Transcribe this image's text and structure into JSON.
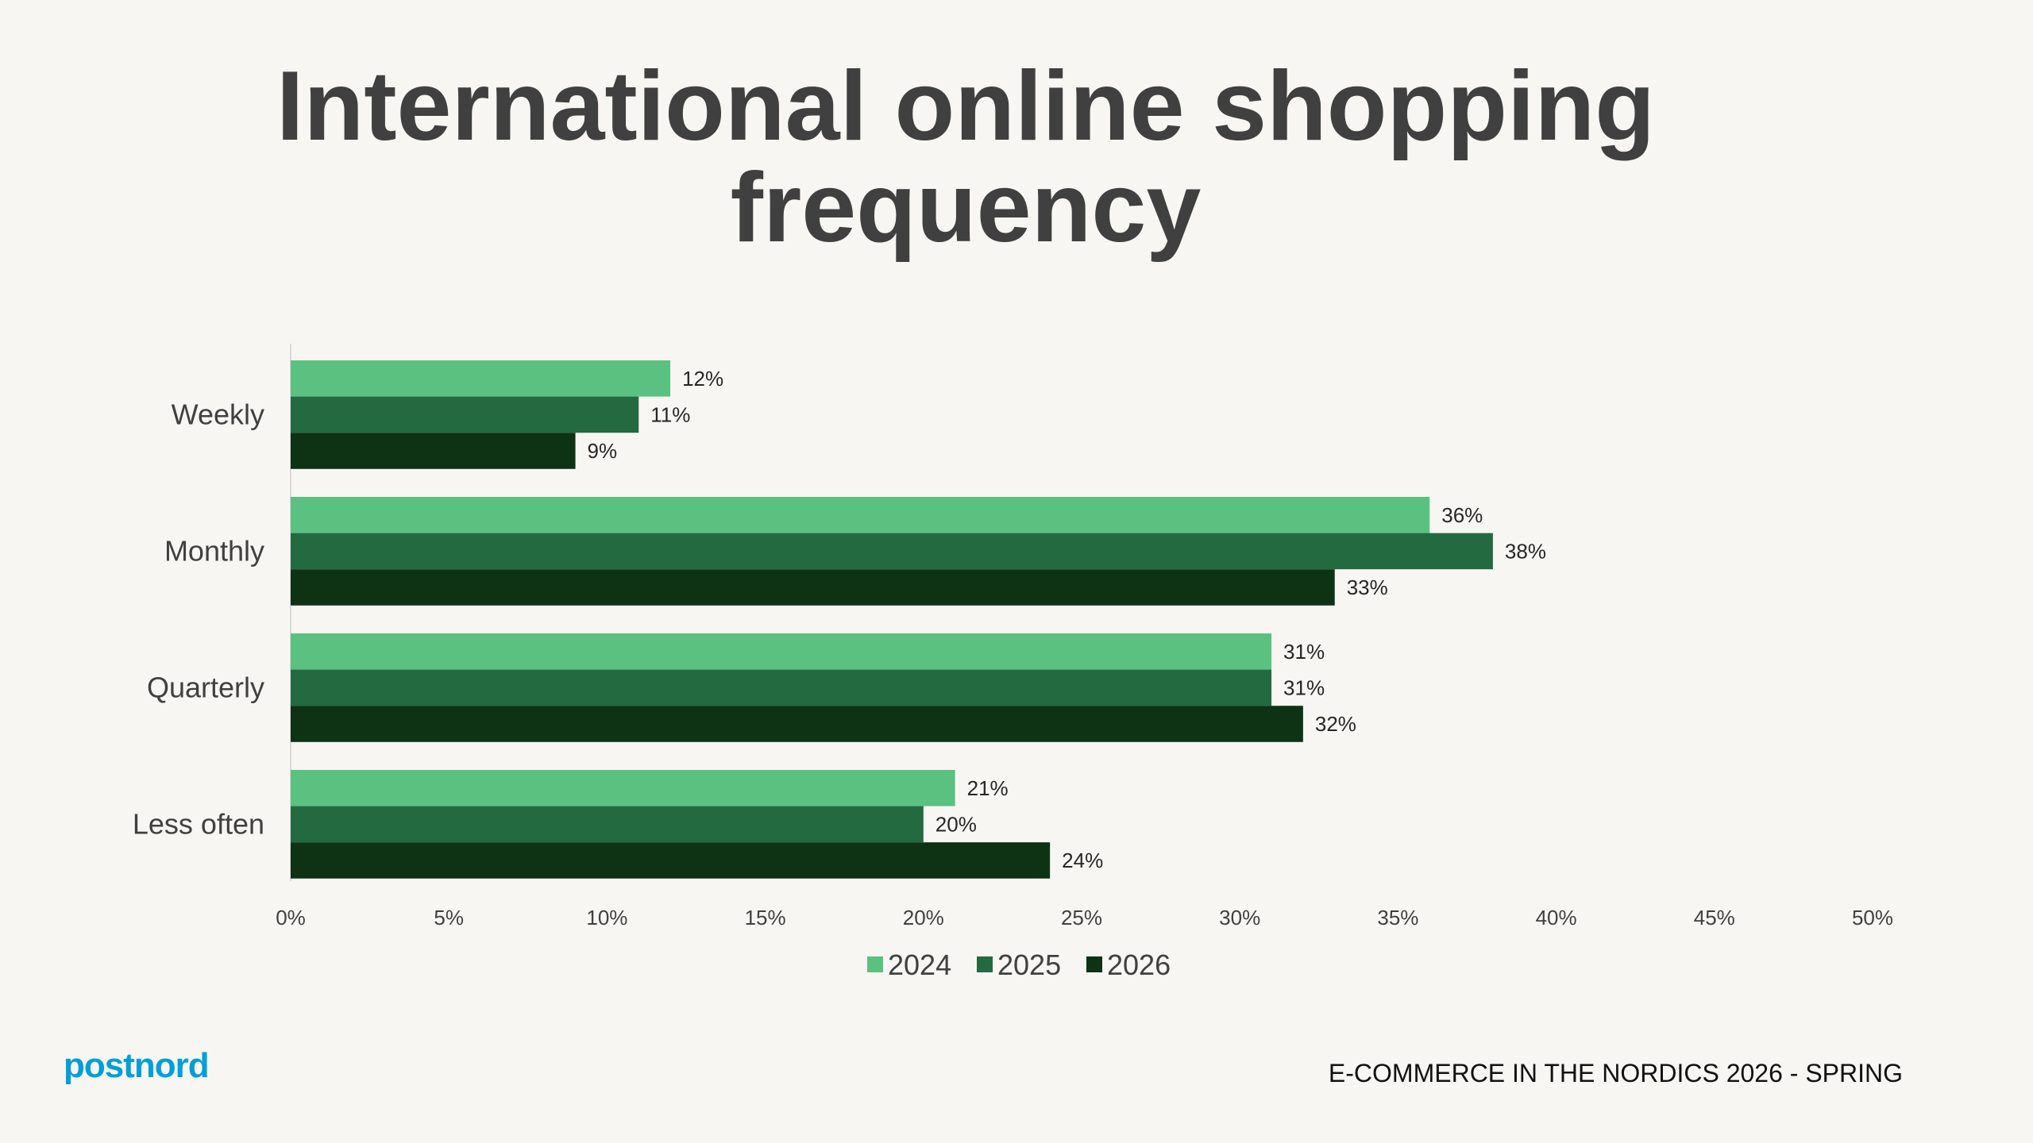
{
  "chart_data": {
    "type": "bar",
    "orientation": "horizontal",
    "title": "International online shopping frequency",
    "categories": [
      "Weekly",
      "Monthly",
      "Quarterly",
      "Less often"
    ],
    "series": [
      {
        "name": "2024",
        "color": "#5bc181",
        "values": [
          12,
          36,
          31,
          21
        ],
        "labels": [
          "12%",
          "36%",
          "31%",
          "21%"
        ]
      },
      {
        "name": "2025",
        "color": "#246a40",
        "values": [
          11,
          38,
          31,
          20
        ],
        "labels": [
          "11%",
          "38%",
          "31%",
          "20%"
        ]
      },
      {
        "name": "2026",
        "color": "#0d3314",
        "values": [
          9,
          33,
          32,
          24
        ],
        "labels": [
          "9%",
          "33%",
          "32%",
          "24%"
        ]
      }
    ],
    "xlim": [
      0,
      50
    ],
    "xticks": [
      "0%",
      "5%",
      "10%",
      "15%",
      "20%",
      "25%",
      "30%",
      "35%",
      "40%",
      "45%",
      "50%"
    ],
    "xlabel": "",
    "ylabel": "",
    "grid": false,
    "legend": "bottom"
  },
  "footer": {
    "logo": "postnord",
    "caption": "E-COMMERCE IN THE NORDICS 2026 - SPRING"
  }
}
